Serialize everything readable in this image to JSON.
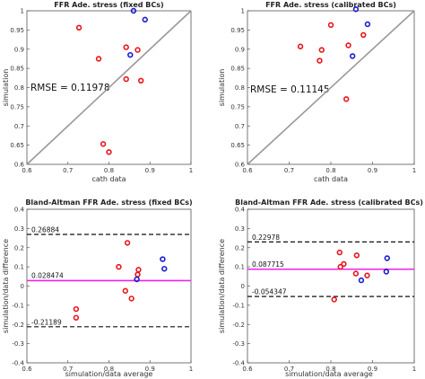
{
  "chart_data": [
    {
      "type": "scatter",
      "title": "FFR Ade. stress (fixed BCs)",
      "xlabel": "cath data",
      "ylabel": "simulation",
      "xlim": [
        0.6,
        1.0
      ],
      "ylim": [
        0.6,
        1.0
      ],
      "xticks": [
        "0.6",
        "0.7",
        "0.8",
        "0.9",
        "1"
      ],
      "yticks": [
        "0.6",
        "0.65",
        "0.7",
        "0.75",
        "0.8",
        "0.85",
        "0.9",
        "0.95",
        "1"
      ],
      "identity_line": true,
      "grid": false,
      "annotation": "RMSE = 0.11978",
      "colors": {
        "red": "#e8141c",
        "blue": "#1a1ad0",
        "identity": "#999999"
      },
      "series": [
        {
          "color": "red",
          "points": [
            [
              0.727,
              0.956
            ],
            [
              0.775,
              0.875
            ],
            [
              0.842,
              0.905
            ],
            [
              0.87,
              0.898
            ],
            [
              0.842,
              0.822
            ],
            [
              0.878,
              0.818
            ],
            [
              0.786,
              0.653
            ],
            [
              0.8,
              0.632
            ]
          ]
        },
        {
          "color": "blue",
          "points": [
            [
              0.86,
              1.0
            ],
            [
              0.888,
              0.977
            ],
            [
              0.852,
              0.885
            ]
          ]
        }
      ]
    },
    {
      "type": "scatter",
      "title": "FFR Ade. stress (calibrated BCs)",
      "xlabel": "cath data",
      "ylabel": "simulation",
      "xlim": [
        0.6,
        1.0
      ],
      "ylim": [
        0.6,
        1.0
      ],
      "xticks": [
        "0.6",
        "0.7",
        "0.8",
        "0.9",
        "1"
      ],
      "yticks": [
        "0.6",
        "0.65",
        "0.7",
        "0.75",
        "0.8",
        "0.85",
        "0.9",
        "0.95",
        "1"
      ],
      "identity_line": true,
      "grid": false,
      "annotation": "RMSE = 0.11145",
      "colors": {
        "red": "#e8141c",
        "blue": "#1a1ad0",
        "identity": "#999999"
      },
      "series": [
        {
          "color": "red",
          "points": [
            [
              0.727,
              0.907
            ],
            [
              0.778,
              0.898
            ],
            [
              0.773,
              0.87
            ],
            [
              0.8,
              0.963
            ],
            [
              0.842,
              0.91
            ],
            [
              0.878,
              0.937
            ],
            [
              0.837,
              0.77
            ]
          ]
        },
        {
          "color": "blue",
          "points": [
            [
              0.86,
              1.004
            ],
            [
              0.888,
              0.965
            ],
            [
              0.852,
              0.882
            ]
          ]
        }
      ]
    },
    {
      "type": "scatter",
      "title": "Bland-Altman FFR Ade. stress (fixed BCs)",
      "xlabel": "simulation/data average",
      "ylabel": "simulation/data difference",
      "xlim": [
        0.6,
        1.0
      ],
      "ylim": [
        -0.4,
        0.4
      ],
      "xticks": [
        "0.6",
        "0.7",
        "0.8",
        "0.9",
        "1"
      ],
      "yticks": [
        "-0.4",
        "-0.3",
        "-0.2",
        "-0.1",
        "0",
        "0.1",
        "0.2",
        "0.3",
        "0.4"
      ],
      "grid": false,
      "mean_line": {
        "value": 0.028474,
        "label": "0.028474",
        "color": "#ee22ee"
      },
      "limit_lines": [
        {
          "value": 0.26884,
          "label": "0.26884"
        },
        {
          "value": -0.21189,
          "label": "-0.21189"
        }
      ],
      "colors": {
        "red": "#e8141c",
        "blue": "#1a1ad0"
      },
      "series": [
        {
          "color": "red",
          "points": [
            [
              0.72,
              -0.12
            ],
            [
              0.72,
              -0.165
            ],
            [
              0.824,
              0.1
            ],
            [
              0.845,
              0.225
            ],
            [
              0.84,
              -0.025
            ],
            [
              0.855,
              -0.065
            ],
            [
              0.87,
              0.06
            ],
            [
              0.872,
              0.085
            ]
          ]
        },
        {
          "color": "blue",
          "points": [
            [
              0.931,
              0.14
            ],
            [
              0.935,
              0.09
            ],
            [
              0.868,
              0.035
            ]
          ]
        }
      ]
    },
    {
      "type": "scatter",
      "title": "Bland-Altman FFR Ade. stress (calibrated BCs)",
      "xlabel": "simulation/data average",
      "ylabel": "simulation/data difference",
      "xlim": [
        0.6,
        1.0
      ],
      "ylim": [
        -0.4,
        0.4
      ],
      "xticks": [
        "0.6",
        "0.7",
        "0.8",
        "0.9",
        "1"
      ],
      "yticks": [
        "-0.4",
        "-0.3",
        "-0.2",
        "-0.1",
        "0",
        "0.1",
        "0.2",
        "0.3",
        "0.4"
      ],
      "grid": false,
      "mean_line": {
        "value": 0.087715,
        "label": "0.087715",
        "color": "#ee22ee"
      },
      "limit_lines": [
        {
          "value": 0.22978,
          "label": "0.22978"
        },
        {
          "value": -0.054347,
          "label": "-0.054347"
        }
      ],
      "colors": {
        "red": "#e8141c",
        "blue": "#1a1ad0"
      },
      "series": [
        {
          "color": "red",
          "points": [
            [
              0.808,
              -0.07
            ],
            [
              0.821,
              0.175
            ],
            [
              0.823,
              0.1
            ],
            [
              0.831,
              0.115
            ],
            [
              0.862,
              0.16
            ],
            [
              0.86,
              0.065
            ],
            [
              0.887,
              0.055
            ]
          ]
        },
        {
          "color": "blue",
          "points": [
            [
              0.873,
              0.03
            ],
            [
              0.935,
              0.145
            ],
            [
              0.933,
              0.075
            ]
          ]
        }
      ]
    }
  ]
}
